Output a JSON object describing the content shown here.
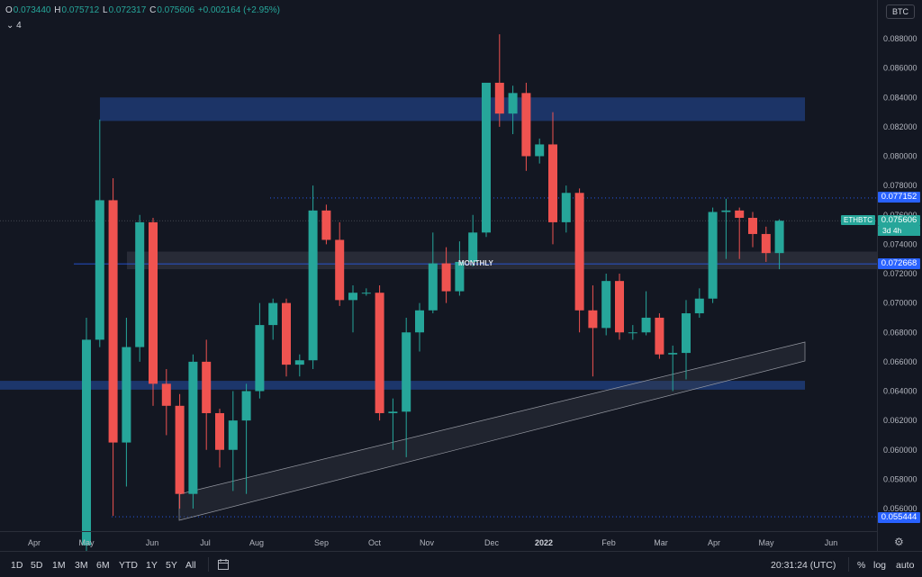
{
  "ohlc": {
    "open_label": "O",
    "open": "0.073440",
    "high_label": "H",
    "high": "0.075712",
    "low_label": "L",
    "low": "0.072317",
    "close_label": "C",
    "close": "0.075606",
    "change": "+0.002164 (+2.95%)"
  },
  "collapse_toggle": {
    "icon": "chevron-down",
    "count": "4"
  },
  "currency_badge": "BTC",
  "price_scale": {
    "ticks": [
      "0.088000",
      "0.086000",
      "0.084000",
      "0.082000",
      "0.080000",
      "0.078000",
      "0.076000",
      "0.074000",
      "0.072000",
      "0.070000",
      "0.068000",
      "0.066000",
      "0.064000",
      "0.062000",
      "0.060000",
      "0.058000",
      "0.056000"
    ],
    "labels": {
      "upper_line": "0.077152",
      "current_price": "0.075606",
      "monthly_line": "0.072668",
      "low_line": "0.055444"
    },
    "symbol": "ETHBTC",
    "countdown": "3d 4h"
  },
  "annotation": "MONTHLY",
  "time_axis": {
    "labels": [
      "Apr",
      "May",
      "Jun",
      "Jul",
      "Aug",
      "Sep",
      "Oct",
      "Nov",
      "Dec",
      "2022",
      "Feb",
      "Mar",
      "Apr",
      "May",
      "Jun"
    ]
  },
  "bottom_bar": {
    "timeframes": [
      "1D",
      "5D",
      "1M",
      "3M",
      "6M",
      "YTD",
      "1Y",
      "5Y",
      "All"
    ],
    "time": "20:31:24 (UTC)",
    "percent": "%",
    "log": "log",
    "auto": "auto",
    "icons": [
      "calendar-range-icon",
      "settings-gear-icon"
    ]
  },
  "colors": {
    "background": "#131722",
    "up": "#26a69a",
    "down": "#ef5350",
    "zone_blue": "#1e3a73",
    "zone_gray": "#3a3d48",
    "label_blue": "#2962ff"
  },
  "chart_data": {
    "type": "candlestick",
    "symbol": "ETHBTC",
    "interval": "3D",
    "candles": [
      {
        "o": 0.0535,
        "h": 0.069,
        "l": 0.053,
        "c": 0.0675
      },
      {
        "o": 0.0675,
        "h": 0.0825,
        "l": 0.067,
        "c": 0.077
      },
      {
        "o": 0.077,
        "h": 0.0785,
        "l": 0.0555,
        "c": 0.0605
      },
      {
        "o": 0.0605,
        "h": 0.069,
        "l": 0.0575,
        "c": 0.067
      },
      {
        "o": 0.067,
        "h": 0.076,
        "l": 0.066,
        "c": 0.0755
      },
      {
        "o": 0.0755,
        "h": 0.0758,
        "l": 0.063,
        "c": 0.0645
      },
      {
        "o": 0.0645,
        "h": 0.0655,
        "l": 0.061,
        "c": 0.063
      },
      {
        "o": 0.063,
        "h": 0.0638,
        "l": 0.056,
        "c": 0.057
      },
      {
        "o": 0.057,
        "h": 0.0665,
        "l": 0.056,
        "c": 0.066
      },
      {
        "o": 0.066,
        "h": 0.0675,
        "l": 0.06,
        "c": 0.0625
      },
      {
        "o": 0.0625,
        "h": 0.0628,
        "l": 0.0588,
        "c": 0.06
      },
      {
        "o": 0.06,
        "h": 0.064,
        "l": 0.0572,
        "c": 0.062
      },
      {
        "o": 0.062,
        "h": 0.0645,
        "l": 0.057,
        "c": 0.064
      },
      {
        "o": 0.064,
        "h": 0.07,
        "l": 0.0635,
        "c": 0.0685
      },
      {
        "o": 0.0685,
        "h": 0.0703,
        "l": 0.0675,
        "c": 0.07
      },
      {
        "o": 0.07,
        "h": 0.0703,
        "l": 0.065,
        "c": 0.0658
      },
      {
        "o": 0.0658,
        "h": 0.0665,
        "l": 0.065,
        "c": 0.0661
      },
      {
        "o": 0.0661,
        "h": 0.078,
        "l": 0.0655,
        "c": 0.0763
      },
      {
        "o": 0.0763,
        "h": 0.0767,
        "l": 0.074,
        "c": 0.0743
      },
      {
        "o": 0.0743,
        "h": 0.0755,
        "l": 0.0698,
        "c": 0.0702
      },
      {
        "o": 0.0702,
        "h": 0.0712,
        "l": 0.068,
        "c": 0.0707
      },
      {
        "o": 0.0707,
        "h": 0.071,
        "l": 0.0705,
        "c": 0.0707
      },
      {
        "o": 0.0707,
        "h": 0.0712,
        "l": 0.062,
        "c": 0.0625
      },
      {
        "o": 0.0625,
        "h": 0.0635,
        "l": 0.06,
        "c": 0.0626
      },
      {
        "o": 0.0626,
        "h": 0.069,
        "l": 0.0595,
        "c": 0.068
      },
      {
        "o": 0.068,
        "h": 0.07,
        "l": 0.0667,
        "c": 0.0695
      },
      {
        "o": 0.0695,
        "h": 0.0748,
        "l": 0.0693,
        "c": 0.0727
      },
      {
        "o": 0.0727,
        "h": 0.0738,
        "l": 0.07,
        "c": 0.0708
      },
      {
        "o": 0.0708,
        "h": 0.0742,
        "l": 0.0705,
        "c": 0.0728
      },
      {
        "o": 0.0728,
        "h": 0.076,
        "l": 0.0725,
        "c": 0.0748
      },
      {
        "o": 0.0748,
        "h": 0.085,
        "l": 0.0745,
        "c": 0.085
      },
      {
        "o": 0.085,
        "h": 0.0883,
        "l": 0.082,
        "c": 0.0829
      },
      {
        "o": 0.0829,
        "h": 0.0848,
        "l": 0.0815,
        "c": 0.0843
      },
      {
        "o": 0.0843,
        "h": 0.085,
        "l": 0.079,
        "c": 0.08
      },
      {
        "o": 0.08,
        "h": 0.0812,
        "l": 0.0795,
        "c": 0.0808
      },
      {
        "o": 0.0808,
        "h": 0.083,
        "l": 0.074,
        "c": 0.0755
      },
      {
        "o": 0.0755,
        "h": 0.078,
        "l": 0.0748,
        "c": 0.0775
      },
      {
        "o": 0.0775,
        "h": 0.0778,
        "l": 0.068,
        "c": 0.0695
      },
      {
        "o": 0.0695,
        "h": 0.0712,
        "l": 0.065,
        "c": 0.0683
      },
      {
        "o": 0.0683,
        "h": 0.072,
        "l": 0.0678,
        "c": 0.0715
      },
      {
        "o": 0.0715,
        "h": 0.072,
        "l": 0.0675,
        "c": 0.068
      },
      {
        "o": 0.068,
        "h": 0.0685,
        "l": 0.0675,
        "c": 0.068
      },
      {
        "o": 0.068,
        "h": 0.0708,
        "l": 0.0678,
        "c": 0.069
      },
      {
        "o": 0.069,
        "h": 0.0693,
        "l": 0.0662,
        "c": 0.0665
      },
      {
        "o": 0.0665,
        "h": 0.0671,
        "l": 0.064,
        "c": 0.0666
      },
      {
        "o": 0.0666,
        "h": 0.0702,
        "l": 0.0648,
        "c": 0.0693
      },
      {
        "o": 0.0693,
        "h": 0.071,
        "l": 0.069,
        "c": 0.0703
      },
      {
        "o": 0.0703,
        "h": 0.0765,
        "l": 0.07,
        "c": 0.0762
      },
      {
        "o": 0.0762,
        "h": 0.0771,
        "l": 0.073,
        "c": 0.0763
      },
      {
        "o": 0.0763,
        "h": 0.0765,
        "l": 0.073,
        "c": 0.0758
      },
      {
        "o": 0.0758,
        "h": 0.0762,
        "l": 0.0738,
        "c": 0.0747
      },
      {
        "o": 0.0747,
        "h": 0.0752,
        "l": 0.0728,
        "c": 0.0734
      },
      {
        "o": 0.0734,
        "h": 0.0757,
        "l": 0.0723,
        "c": 0.0756
      }
    ],
    "zones": [
      {
        "name": "upper-resistance",
        "from": 0.0824,
        "to": 0.084,
        "start": "May",
        "end": "May"
      },
      {
        "name": "monthly-zone",
        "from": 0.0723,
        "to": 0.0735
      },
      {
        "name": "lower-support",
        "from": 0.0641,
        "to": 0.0647
      }
    ],
    "horizontal_lines": [
      0.077152,
      0.072668,
      0.055444
    ],
    "y_range": [
      0.053,
      0.0895
    ],
    "log_scale": false,
    "grid": false
  }
}
